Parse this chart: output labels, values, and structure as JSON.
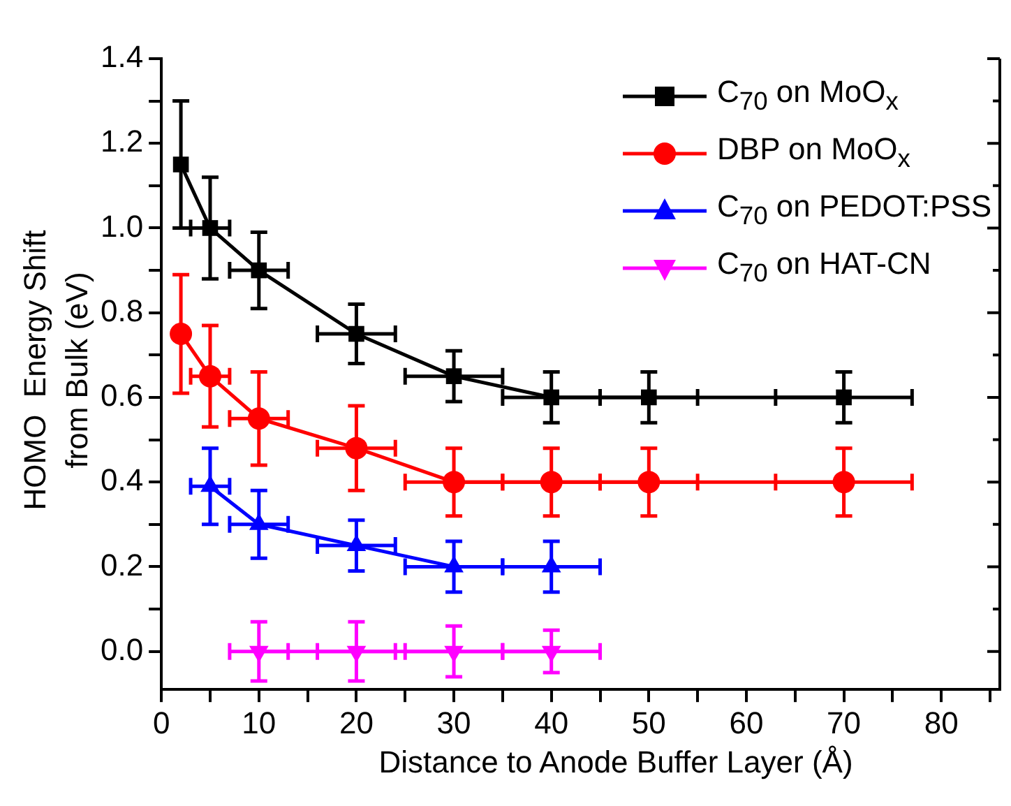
{
  "chart_data": {
    "type": "line",
    "xlabel": "Distance to Anode Buffer Layer (Å)",
    "ylabel": "HOMO  Energy Shift\nfrom Bulk (eV)",
    "xlim": [
      0,
      86
    ],
    "xticks": [
      0,
      {
        "value": 5,
        "label": null
      },
      10,
      {
        "value": 15,
        "label": null
      },
      20,
      {
        "value": 25,
        "label": null
      },
      30,
      {
        "value": 35,
        "label": null
      },
      40,
      {
        "value": 45,
        "label": null
      },
      50,
      {
        "value": 55,
        "label": null
      },
      60,
      {
        "value": 65,
        "label": null
      },
      70,
      {
        "value": 75,
        "label": null
      },
      80,
      {
        "value": 85,
        "label": null
      }
    ],
    "ylim": [
      -0.09,
      1.4
    ],
    "yticks": [
      {
        "value": 0,
        "label": "0.0"
      },
      {
        "value": 0.1,
        "label": null
      },
      0.2,
      {
        "value": 0.3,
        "label": null
      },
      0.4,
      {
        "value": 0.5,
        "label": null
      },
      0.6,
      {
        "value": 0.7,
        "label": null
      },
      0.8,
      {
        "value": 0.9,
        "label": null
      },
      {
        "value": 1,
        "label": "1.0"
      },
      {
        "value": 1.1,
        "label": null
      },
      1.2,
      {
        "value": 1.3,
        "label": null
      },
      1.4
    ],
    "legend": "top right",
    "grid": false,
    "line_style": "solid",
    "series": [
      {
        "name": "C$_{70}$ on MoO$_{x}$",
        "color": "#000000",
        "marker": "square",
        "x": [
          2,
          5,
          10,
          20,
          30,
          40,
          50,
          70
        ],
        "values": [
          1.15,
          1.0,
          0.9,
          0.75,
          0.65,
          0.6,
          0.6,
          0.6
        ],
        "errors": [
          0.15,
          0.12,
          0.09,
          0.07,
          0.06,
          0.06,
          0.06,
          0.06
        ],
        "xerrors": [
          null,
          2,
          3,
          4,
          5,
          5,
          5,
          7
        ]
      },
      {
        "name": "DBP on MoO$_{x}$",
        "color": "#ff0000",
        "marker": "circle",
        "x": [
          2,
          5,
          10,
          20,
          30,
          40,
          50,
          70
        ],
        "values": [
          0.75,
          0.65,
          0.55,
          0.48,
          0.4,
          0.4,
          0.4,
          0.4
        ],
        "errors": [
          0.14,
          0.12,
          0.11,
          0.1,
          0.08,
          0.08,
          0.08,
          0.08
        ],
        "xerrors": [
          null,
          2,
          3,
          4,
          5,
          5,
          5,
          7
        ]
      },
      {
        "name": "C$_{70}$ on PEDOT:PSS",
        "color": "#0000ff",
        "marker": "triangle",
        "x": [
          5,
          10,
          20,
          30,
          40
        ],
        "values": [
          0.39,
          0.3,
          0.25,
          0.2,
          0.2
        ],
        "errors": [
          0.09,
          0.08,
          0.06,
          0.06,
          0.06
        ],
        "xerrors": [
          2,
          3,
          4,
          5,
          5
        ]
      },
      {
        "name": "C$_{70}$ on HAT-CN",
        "color": "#ff00ff",
        "marker": "triangle-down",
        "x": [
          10,
          20,
          30,
          40
        ],
        "values": [
          0,
          0,
          0,
          0
        ],
        "errors": [
          0.07,
          0.07,
          0.06,
          0.05
        ],
        "xerrors": [
          3,
          4,
          5,
          5
        ]
      }
    ]
  }
}
